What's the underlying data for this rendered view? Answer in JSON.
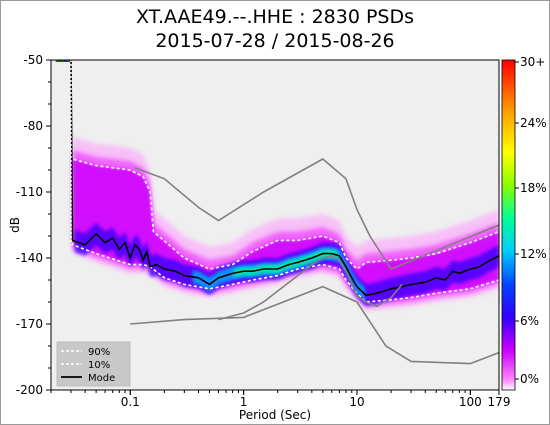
{
  "chart_data": {
    "type": "heatmap",
    "title_line1": "XT.AAE49.--.HHE : 2830 PSDs",
    "title_line2": "2015-07-28 / 2015-08-26",
    "xlabel": "Period (Sec)",
    "ylabel": "dB",
    "x_scale": "log",
    "xlim": [
      0.02,
      179
    ],
    "ylim": [
      -200,
      -50
    ],
    "x_ticks": [
      {
        "value": 0.1,
        "label": "0.1"
      },
      {
        "value": 1,
        "label": "1"
      },
      {
        "value": 10,
        "label": "10"
      },
      {
        "value": 100,
        "label": "100"
      },
      {
        "value": 179,
        "label": "179"
      }
    ],
    "y_ticks": [
      {
        "value": -50,
        "label": "-50"
      },
      {
        "value": -80,
        "label": "-80"
      },
      {
        "value": -110,
        "label": "-110"
      },
      {
        "value": -140,
        "label": "-140"
      },
      {
        "value": -170,
        "label": "-170"
      },
      {
        "value": -200,
        "label": "-200"
      }
    ],
    "colorbar": {
      "range": [
        0,
        30
      ],
      "ticks": [
        "0%",
        "6%",
        "12%",
        "18%",
        "24%",
        "30+"
      ],
      "colors": [
        "#ffffff",
        "#ff66ff",
        "#cc00ff",
        "#0000ff",
        "#00ccff",
        "#00ff99",
        "#ccff00",
        "#ffff00",
        "#ff9900",
        "#ff0000"
      ]
    },
    "series": [
      {
        "name": "90%",
        "style": "dashed",
        "color": "#ffffff",
        "x": [
          0.022,
          0.03,
          0.031,
          0.05,
          0.1,
          0.13,
          0.15,
          0.16,
          0.3,
          0.5,
          0.8,
          1.2,
          2,
          3,
          5,
          7,
          8,
          10,
          12,
          20,
          30,
          50,
          100,
          179
        ],
        "y": [
          -50,
          -50,
          -95,
          -98,
          -100,
          -103,
          -110,
          -128,
          -140,
          -145,
          -143,
          -137,
          -132,
          -132,
          -130,
          -133,
          -140,
          -145,
          -142,
          -141,
          -140,
          -138,
          -133,
          -128
        ]
      },
      {
        "name": "10%",
        "style": "dashed",
        "color": "#ffffff",
        "x": [
          0.022,
          0.03,
          0.031,
          0.05,
          0.1,
          0.13,
          0.15,
          0.2,
          0.3,
          0.5,
          0.8,
          1.2,
          2,
          3,
          5,
          7,
          8,
          10,
          12,
          20,
          30,
          50,
          100,
          179
        ],
        "y": [
          -50,
          -50,
          -134,
          -138,
          -143,
          -143,
          -144,
          -149,
          -152,
          -154,
          -152,
          -150,
          -148,
          -145,
          -143,
          -145,
          -150,
          -156,
          -160,
          -159,
          -158,
          -156,
          -154,
          -150
        ]
      },
      {
        "name": "Mode",
        "style": "solid",
        "color": "#000000",
        "x": [
          0.022,
          0.03,
          0.031,
          0.04,
          0.05,
          0.06,
          0.07,
          0.08,
          0.09,
          0.1,
          0.11,
          0.12,
          0.13,
          0.14,
          0.15,
          0.17,
          0.2,
          0.25,
          0.3,
          0.4,
          0.5,
          0.6,
          0.8,
          1,
          1.2,
          1.5,
          2,
          2.5,
          3,
          4,
          5,
          6,
          7,
          8,
          9,
          10,
          12,
          15,
          20,
          25,
          30,
          40,
          50,
          60,
          70,
          80,
          100,
          120,
          150,
          179
        ],
        "y": [
          -50,
          -50,
          -132,
          -134,
          -129,
          -133,
          -131,
          -136,
          -133,
          -140,
          -134,
          -136,
          -141,
          -137,
          -144,
          -143,
          -145,
          -146,
          -148,
          -149,
          -152,
          -149,
          -147,
          -146,
          -146,
          -145,
          -145,
          -143,
          -142,
          -140,
          -138,
          -138,
          -139,
          -144,
          -149,
          -153,
          -157,
          -156,
          -154,
          -153,
          -152,
          -151,
          -149,
          -150,
          -146,
          -147,
          -145,
          -144,
          -141,
          -139
        ]
      },
      {
        "name": "",
        "style": "gray",
        "color": "#808080",
        "x": [
          0.1,
          0.3,
          1,
          5,
          10,
          18,
          30,
          100,
          179
        ],
        "y": [
          -170,
          -168,
          -167,
          -153,
          -160,
          -180,
          -187,
          -188,
          -183
        ]
      },
      {
        "name": "",
        "style": "gray",
        "color": "#808080",
        "x": [
          0.11,
          0.2,
          0.4,
          0.6,
          1.5,
          5,
          8,
          10,
          13,
          20,
          179
        ],
        "y": [
          -99,
          -104,
          -117,
          -123,
          -110,
          -95,
          -104,
          -118,
          -130,
          -145,
          -125
        ]
      },
      {
        "name": "",
        "style": "gray",
        "color": "#808080",
        "x": [
          0.6,
          1,
          1.5,
          2,
          3,
          4,
          5,
          6,
          7,
          8,
          9,
          10,
          12,
          15,
          20,
          25
        ],
        "y": [
          -168,
          -165,
          -160,
          -155,
          -148,
          -143,
          -140,
          -139,
          -141,
          -146,
          -152,
          -157,
          -160,
          -162,
          -158,
          -152
        ]
      }
    ],
    "legend": {
      "position": "bottom-left",
      "entries": [
        "90%",
        "10%",
        "Mode"
      ]
    }
  }
}
